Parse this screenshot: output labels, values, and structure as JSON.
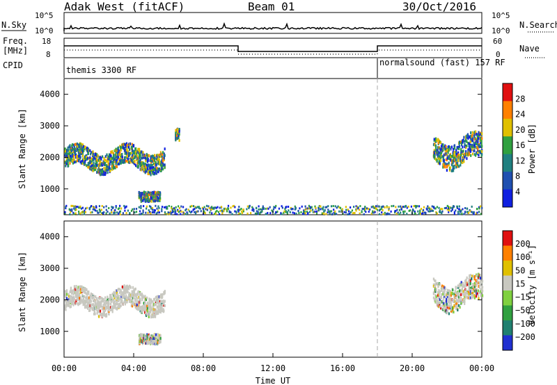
{
  "header": {
    "station": "Adak West (fitACF)",
    "beam": "Beam 01",
    "date": "30/Oct/2016"
  },
  "top_panel": {
    "left_label": "N.Sky",
    "left_ticks": [
      "10^5",
      "10^0"
    ],
    "right_label": "N.Search",
    "right_ticks": [
      "10^5",
      "10^0"
    ]
  },
  "freq_panel": {
    "left_label_line1": "Freq.",
    "left_label_line2": "[MHz]",
    "left_ticks": [
      "18",
      "8"
    ],
    "right_label": "Nave",
    "right_ticks": [
      "60",
      "0"
    ]
  },
  "cpid": {
    "label": "CPID",
    "seg1": "themis 3300 RF",
    "seg2": "normalsound (fast) 157 RF"
  },
  "chart_data": [
    {
      "type": "heatmap",
      "title": "",
      "ylabel": "Slant Range [km]",
      "yticks": [
        "4000",
        "3000",
        "2000",
        "1000"
      ],
      "ylim": [
        180,
        4500
      ],
      "xlim_hours": [
        0,
        24
      ],
      "colorbar": {
        "label": "Power [dB]",
        "ticks": [
          "28",
          "24",
          "20",
          "16",
          "12",
          "8",
          "4"
        ],
        "colors": [
          "#1020e0",
          "#2050b0",
          "#208080",
          "#30a040",
          "#e0c000",
          "#ff8000",
          "#e01010"
        ]
      },
      "echo_regions": [
        {
          "t_start": "00:00",
          "t_end": "05:45",
          "range_km": [
            1400,
            2500
          ],
          "note": "main scatter band"
        },
        {
          "t_start": "04:15",
          "t_end": "05:30",
          "range_km": [
            600,
            900
          ]
        },
        {
          "t_start": "06:20",
          "t_end": "06:35",
          "range_km": [
            2500,
            2900
          ]
        },
        {
          "t_start": "21:10",
          "t_end": "24:00",
          "range_km": [
            1500,
            2900
          ]
        },
        {
          "t_start": "00:00",
          "t_end": "24:00",
          "range_km": [
            180,
            450
          ],
          "note": "near-range ground scatter"
        }
      ]
    },
    {
      "type": "heatmap",
      "title": "",
      "ylabel": "Slant Range [km]",
      "yticks": [
        "4000",
        "3000",
        "2000",
        "1000"
      ],
      "ylim": [
        180,
        4500
      ],
      "xlim_hours": [
        0,
        24
      ],
      "colorbar": {
        "label": "Velocity [m s⁻¹]",
        "ticks": [
          "200",
          "100",
          "50",
          "15",
          "−15",
          "−50",
          "−100",
          "−200"
        ],
        "colors": [
          "#2030d0",
          "#208070",
          "#30a040",
          "#80d040",
          "#c8c8c0",
          "#e0c000",
          "#ff8000",
          "#e01010"
        ]
      },
      "echo_regions": [
        {
          "t_start": "00:00",
          "t_end": "05:45",
          "range_km": [
            1400,
            2500
          ],
          "note": "mostly ground scatter (grey)"
        },
        {
          "t_start": "04:15",
          "t_end": "05:30",
          "range_km": [
            600,
            900
          ]
        },
        {
          "t_start": "21:10",
          "t_end": "24:00",
          "range_km": [
            1500,
            2900
          ]
        }
      ]
    }
  ],
  "xaxis": {
    "ticks": [
      "00:00",
      "04:00",
      "08:00",
      "12:00",
      "16:00",
      "20:00",
      "00:00"
    ],
    "label": "Time UT"
  }
}
